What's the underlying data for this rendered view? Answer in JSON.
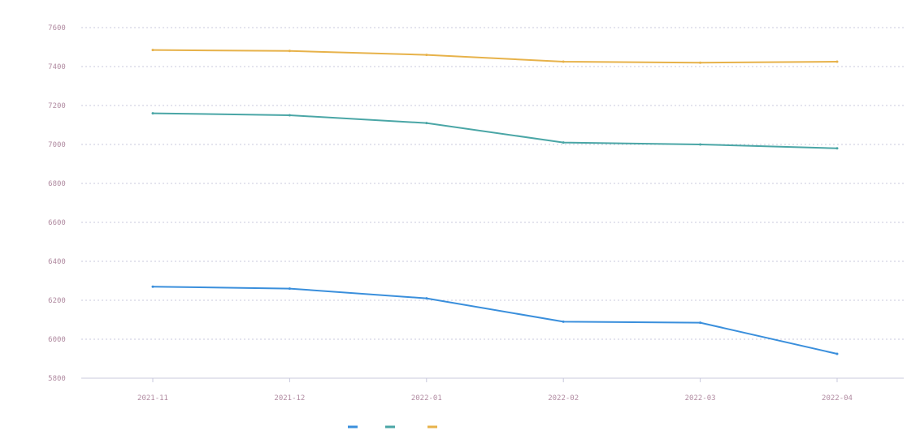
{
  "chart_data": {
    "type": "line",
    "title": "",
    "xlabel": "",
    "ylabel": "",
    "categories": [
      "2021-11",
      "2021-12",
      "2022-01",
      "2022-02",
      "2022-03",
      "2022-04"
    ],
    "ylim": [
      5800,
      7600
    ],
    "yticks": [
      5800,
      6000,
      6200,
      6400,
      6600,
      6800,
      7000,
      7200,
      7400,
      7600
    ],
    "grid": "horizontal-dotted",
    "legend_position": "bottom-center",
    "series": [
      {
        "name": "",
        "color": "#3a8fdc",
        "values": [
          6270,
          6260,
          6210,
          6090,
          6085,
          5925
        ]
      },
      {
        "name": "",
        "color": "#4aa6a6",
        "values": [
          7160,
          7150,
          7110,
          7010,
          7000,
          6980
        ]
      },
      {
        "name": "",
        "color": "#e7b24a",
        "values": [
          7485,
          7480,
          7460,
          7425,
          7420,
          7425
        ]
      }
    ]
  }
}
